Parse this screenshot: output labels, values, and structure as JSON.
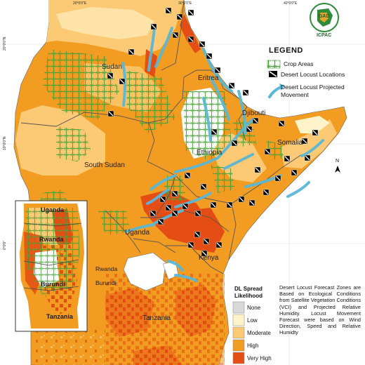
{
  "map": {
    "countries": [
      {
        "name": "Sudan"
      },
      {
        "name": "Eritrea"
      },
      {
        "name": "Djibouti"
      },
      {
        "name": "Ethiopia"
      },
      {
        "name": "Somalia"
      },
      {
        "name": "South Sudan"
      },
      {
        "name": "Uganda"
      },
      {
        "name": "Kenya"
      },
      {
        "name": "Tanzania"
      }
    ],
    "inset_countries": [
      {
        "name": "Uganda"
      },
      {
        "name": "Rwanda"
      },
      {
        "name": "Burundi"
      },
      {
        "name": "Tanzania"
      }
    ],
    "lake_labels": [
      {
        "name": "Rwanda"
      },
      {
        "name": "Burundi"
      }
    ],
    "lat_labels": [
      "20°0'0\"N",
      "10°0'0\"N",
      "0°0'0\""
    ],
    "lon_labels": [
      "20°0'0\"E",
      "30°0'0\"E",
      "40°0'0\"E"
    ],
    "north_arrow": "N"
  },
  "logo": {
    "text": "ICPAC",
    "emblem": "IGAD"
  },
  "legend": {
    "title": "LEGEND",
    "items": [
      {
        "label": "Crop Areas",
        "icon": "crop-hatch-icon"
      },
      {
        "label": "Desert Locust Locations",
        "icon": "locust-marker-icon"
      },
      {
        "label": "Desert Locust Projected Movement",
        "icon": "movement-arrow-icon"
      }
    ]
  },
  "spread_legend": {
    "title_line1": "DL Spread",
    "title_line2": "Likelihood",
    "classes": [
      {
        "label": "None",
        "color": "#d9d9d9"
      },
      {
        "label": "Low",
        "color": "#fff3c9"
      },
      {
        "label": "Moderate",
        "color": "#fcca74"
      },
      {
        "label": "High",
        "color": "#f29c22"
      },
      {
        "label": "Very High",
        "color": "#e44d13"
      }
    ]
  },
  "note": "Desert Locust Forecast Zones are Based on Ecological Conditions from Satellite Vegetation Conditions (VCI) and Projected Relative Humidity. Locust Movement Forecast were based on Wind Direction, Speed and Relative Humidty"
}
